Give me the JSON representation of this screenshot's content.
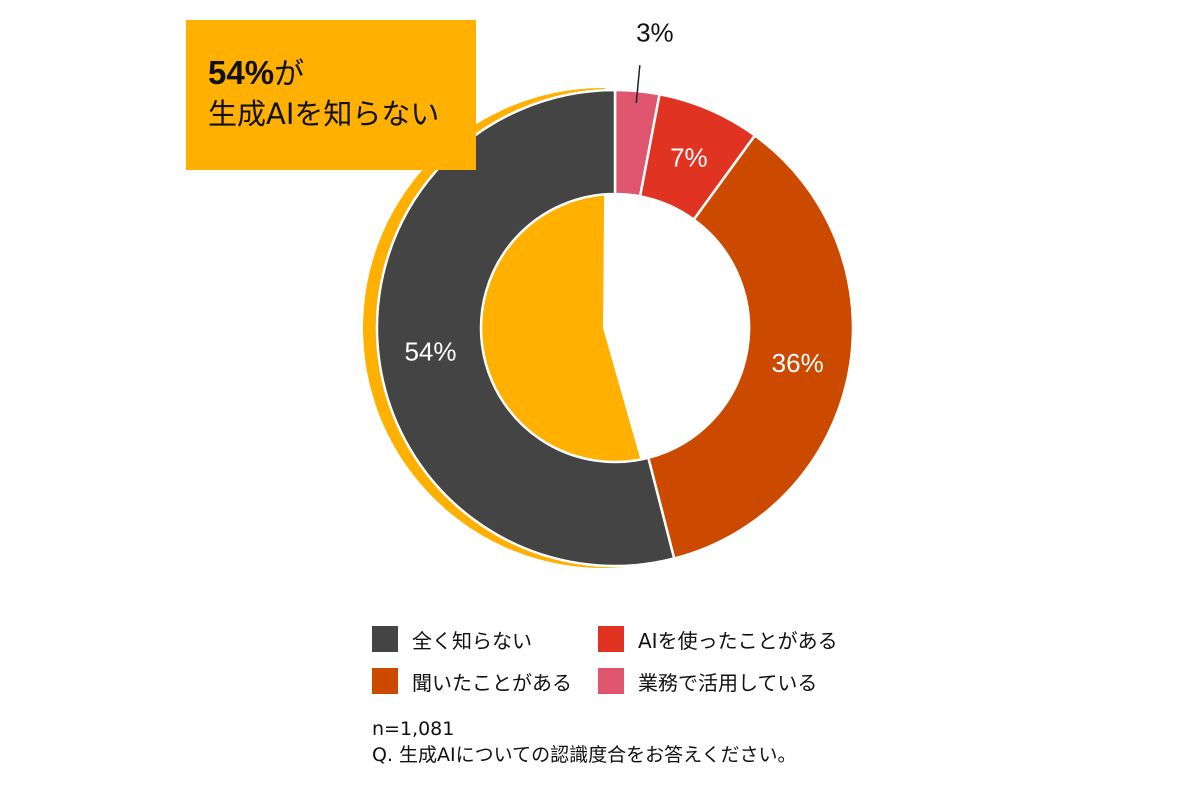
{
  "callout": {
    "value": "54%",
    "suffix": "が",
    "line2": "生成AIを知らない",
    "color": "#ffb000"
  },
  "chart_data": {
    "type": "pie",
    "title": "",
    "donut": true,
    "start_at": "12 o'clock",
    "direction": "clockwise",
    "categories": [
      "業務で活用している",
      "AIを使ったことがある",
      "聞いたことがある",
      "全く知らない"
    ],
    "values": [
      3,
      7,
      36,
      54
    ],
    "labels": [
      "3%",
      "7%",
      "36%",
      "54%"
    ],
    "colors": [
      "#e0566e",
      "#e03322",
      "#cc4a00",
      "#444444"
    ],
    "highlight": {
      "category": "全く知らない",
      "color": "#ffb000"
    }
  },
  "legend": {
    "placement": "bottom",
    "items": [
      {
        "label": "全く知らない",
        "color": "#444444"
      },
      {
        "label": "AIを使ったことがある",
        "color": "#e03322"
      },
      {
        "label": "聞いたことがある",
        "color": "#cc4a00"
      },
      {
        "label": "業務で活用している",
        "color": "#e0566e"
      }
    ]
  },
  "footer": {
    "sample": "n=1,081",
    "question": "Q. 生成AIについての認識度合をお答えください。"
  }
}
